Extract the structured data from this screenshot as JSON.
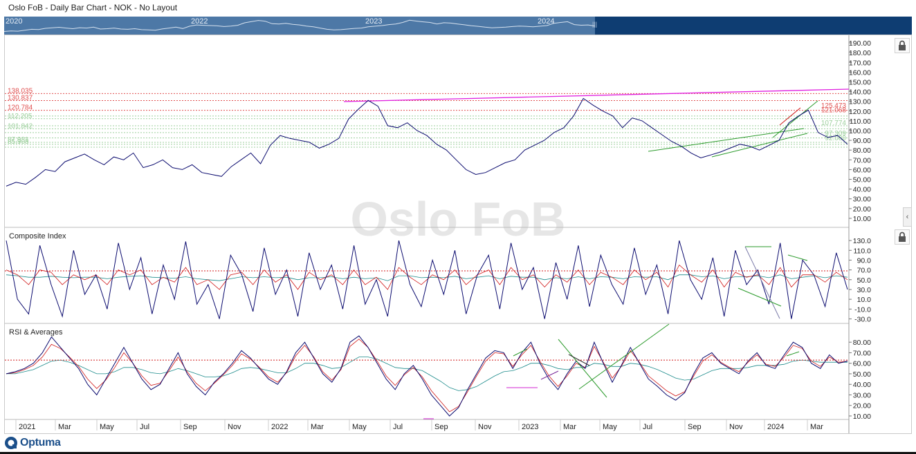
{
  "window": {
    "title": "Oslo FoB - Daily Bar Chart - NOK - No Layout"
  },
  "navigator": {
    "year_labels": [
      "2020",
      "2022",
      "2023",
      "2024"
    ]
  },
  "watermark": "Oslo FoB",
  "logo": {
    "text": "Optuma"
  },
  "colors": {
    "price_line": "#0a0a6e",
    "fast_avg": "#d01818",
    "slow_avg": "#1a8a8a",
    "fib_red": "#e05050",
    "fib_green": "#9ccf9c",
    "trend_magenta": "#e020e0",
    "trend_green": "#2a9a2a",
    "navigator_bg": "#0e3d72"
  },
  "chart_data": [
    {
      "type": "line",
      "title": "",
      "panel": "price",
      "y_axis_ticks": [
        "190.00",
        "180.00",
        "170.00",
        "160.00",
        "150.00",
        "140.00",
        "130.00",
        "120.00",
        "110.00",
        "100.00",
        "90.00",
        "80.00",
        "70.00",
        "60.00",
        "50.00",
        "40.00",
        "30.00",
        "20.00",
        "10.00"
      ],
      "ylim": [
        5,
        195
      ],
      "x_axis_ticks": [
        "2021",
        "Mar",
        "May",
        "Jul",
        "Sep",
        "Nov",
        "2022",
        "Mar",
        "May",
        "Jul",
        "Sep",
        "Nov",
        "2023",
        "Mar",
        "May",
        "Jul",
        "Sep",
        "Nov",
        "2024",
        "Mar"
      ],
      "series": [
        {
          "values": [
            43,
            47,
            45,
            52,
            60,
            58,
            68,
            72,
            76,
            70,
            65,
            73,
            70,
            77,
            62,
            65,
            70,
            62,
            60,
            65,
            57,
            55,
            53,
            63,
            70,
            77,
            66,
            85,
            95,
            92,
            90,
            88,
            82,
            86,
            92,
            112,
            122,
            131,
            125,
            105,
            103,
            108,
            100,
            95,
            86,
            80,
            70,
            60,
            55,
            57,
            62,
            67,
            70,
            80,
            85,
            90,
            98,
            103,
            115,
            133,
            126,
            120,
            115,
            103,
            113,
            110,
            103,
            96,
            89,
            84,
            77,
            72,
            75,
            78,
            82,
            86,
            84,
            80,
            85,
            90,
            108,
            115,
            121,
            98,
            93,
            95,
            86
          ],
          "color_key": "price_line"
        }
      ],
      "fib_levels_red": [
        "138.035",
        "130.837",
        "120.784"
      ],
      "fib_levels_green": [
        "112.205",
        "101.842",
        "87.981",
        "85.908"
      ],
      "right_levels_red": [
        "125.473",
        "121.068"
      ],
      "right_levels_green": [
        "107.774",
        "97.309",
        "92.080"
      ]
    },
    {
      "type": "line",
      "title": "Composite Index",
      "panel": "composite",
      "y_axis_ticks": [
        "130.0",
        "110.0",
        "90.0",
        "70.0",
        "50.0",
        "30.0",
        "10.0",
        "-10.0",
        "-30.0"
      ],
      "ylim": [
        -35,
        140
      ],
      "reference_level": 68,
      "series": [
        {
          "name": "",
          "values": [
            130,
            10,
            -20,
            120,
            40,
            -25,
            110,
            20,
            60,
            -10,
            125,
            30,
            95,
            -20,
            80,
            10,
            128,
            0,
            40,
            -30,
            100,
            60,
            -15,
            115,
            20,
            70,
            -25,
            105,
            30,
            80,
            -10,
            120,
            0,
            50,
            -25,
            130,
            40,
            -5,
            90,
            20,
            110,
            -20,
            60,
            100,
            -10,
            125,
            30,
            75,
            -30,
            85,
            10,
            120,
            -5,
            100,
            40,
            0,
            115,
            20,
            80,
            -20,
            130,
            50,
            10,
            95,
            -25,
            110,
            40,
            70,
            0,
            125,
            -30,
            90,
            60,
            -5,
            105,
            30
          ],
          "color_key": "price_line"
        },
        {
          "name": "",
          "values": [
            70,
            60,
            40,
            70,
            65,
            40,
            60,
            50,
            60,
            40,
            70,
            60,
            70,
            40,
            55,
            45,
            75,
            40,
            50,
            30,
            60,
            65,
            40,
            70,
            45,
            60,
            30,
            65,
            50,
            60,
            40,
            70,
            40,
            55,
            30,
            75,
            55,
            40,
            60,
            50,
            70,
            40,
            60,
            70,
            40,
            75,
            50,
            60,
            35,
            60,
            45,
            70,
            40,
            65,
            55,
            40,
            70,
            50,
            65,
            35,
            80,
            60,
            45,
            70,
            35,
            65,
            55,
            60,
            40,
            75,
            35,
            60,
            60,
            45,
            65,
            50
          ],
          "color_key": "fast_avg"
        },
        {
          "name": "",
          "values": [
            60,
            58,
            55,
            55,
            57,
            55,
            54,
            55,
            55,
            52,
            55,
            57,
            58,
            55,
            54,
            53,
            56,
            52,
            50,
            48,
            52,
            56,
            54,
            56,
            54,
            55,
            50,
            54,
            54,
            56,
            52,
            55,
            52,
            54,
            48,
            58,
            58,
            54,
            55,
            54,
            57,
            52,
            55,
            58,
            52,
            57,
            55,
            55,
            50,
            54,
            52,
            56,
            52,
            56,
            55,
            52,
            56,
            55,
            56,
            50,
            60,
            60,
            56,
            58,
            52,
            56,
            56,
            58,
            54,
            60,
            52,
            55,
            58,
            54,
            58,
            55
          ],
          "color_key": "slow_avg"
        }
      ]
    },
    {
      "type": "line",
      "title": "RSI & Averages",
      "panel": "rsi",
      "y_axis_ticks": [
        "80.00",
        "70.00",
        "60.00",
        "50.00",
        "40.00",
        "30.00",
        "20.00",
        "10.00"
      ],
      "ylim": [
        8,
        88
      ],
      "reference_level": 63,
      "series": [
        {
          "name": "",
          "values": [
            50,
            52,
            55,
            60,
            70,
            85,
            75,
            65,
            55,
            40,
            30,
            45,
            60,
            75,
            60,
            45,
            35,
            40,
            55,
            70,
            50,
            38,
            30,
            42,
            50,
            60,
            72,
            65,
            55,
            45,
            40,
            52,
            70,
            80,
            65,
            50,
            42,
            55,
            80,
            86,
            75,
            60,
            45,
            35,
            50,
            58,
            45,
            30,
            20,
            10,
            18,
            35,
            50,
            65,
            72,
            70,
            55,
            70,
            80,
            60,
            45,
            35,
            50,
            62,
            55,
            80,
            60,
            42,
            58,
            75,
            60,
            45,
            38,
            30,
            25,
            32,
            50,
            65,
            70,
            60,
            55,
            50,
            62,
            70,
            58,
            55,
            68,
            80,
            75,
            60,
            55,
            68,
            60,
            62
          ],
          "color_key": "price_line"
        },
        {
          "name": "",
          "values": [
            50,
            51,
            54,
            58,
            66,
            78,
            74,
            66,
            57,
            45,
            36,
            44,
            56,
            70,
            60,
            48,
            39,
            41,
            53,
            66,
            52,
            41,
            34,
            41,
            49,
            58,
            69,
            64,
            56,
            47,
            42,
            51,
            67,
            77,
            66,
            52,
            44,
            54,
            76,
            83,
            75,
            62,
            48,
            39,
            49,
            56,
            47,
            34,
            24,
            14,
            19,
            33,
            48,
            62,
            70,
            69,
            57,
            68,
            77,
            62,
            48,
            38,
            48,
            60,
            56,
            76,
            61,
            46,
            57,
            72,
            61,
            48,
            41,
            34,
            29,
            33,
            48,
            62,
            68,
            61,
            56,
            52,
            61,
            68,
            59,
            57,
            66,
            77,
            74,
            62,
            57,
            66,
            61,
            62
          ],
          "color_key": "fast_avg"
        },
        {
          "name": "",
          "values": [
            50,
            50,
            52,
            54,
            58,
            62,
            63,
            61,
            58,
            54,
            50,
            50,
            52,
            56,
            56,
            54,
            51,
            50,
            52,
            55,
            53,
            50,
            47,
            47,
            48,
            51,
            55,
            56,
            55,
            53,
            51,
            51,
            55,
            60,
            60,
            58,
            55,
            56,
            61,
            66,
            66,
            64,
            60,
            56,
            55,
            55,
            53,
            48,
            43,
            37,
            34,
            35,
            38,
            43,
            48,
            52,
            53,
            56,
            60,
            60,
            58,
            55,
            54,
            56,
            56,
            60,
            59,
            57,
            57,
            60,
            59,
            57,
            54,
            50,
            46,
            44,
            45,
            49,
            53,
            55,
            55,
            55,
            56,
            58,
            58,
            58,
            59,
            62,
            63,
            62,
            61,
            61,
            61,
            61
          ],
          "color_key": "slow_avg"
        }
      ]
    }
  ]
}
